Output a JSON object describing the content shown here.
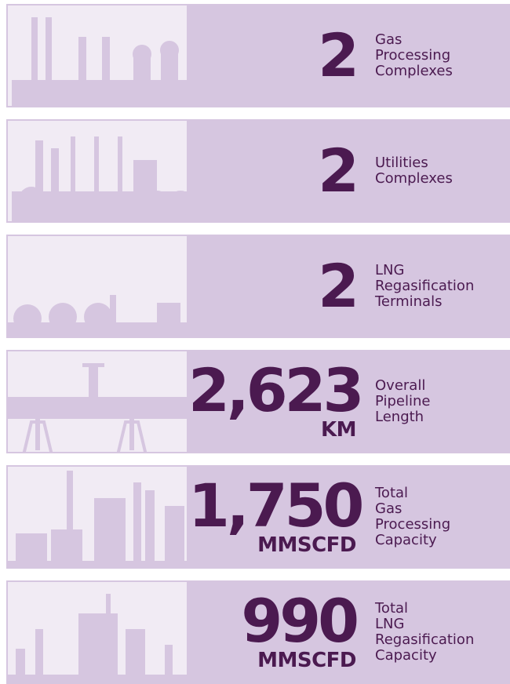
{
  "rows": [
    {
      "value": "2",
      "label": [
        "Gas",
        "Processing",
        "Complexes"
      ]
    },
    {
      "value": "2",
      "label": [
        "Utilities",
        "Complexes"
      ]
    },
    {
      "value": "2",
      "label": [
        "LNG",
        "Regasification",
        "Terminals"
      ]
    },
    {
      "value": "2,623",
      "unit": "KM",
      "label": [
        "Overall",
        "Pipeline",
        "Length"
      ]
    },
    {
      "value": "1,750",
      "unit": "MMSCFD",
      "label": [
        "Total",
        "Gas",
        "Processing",
        "Capacity"
      ]
    },
    {
      "value": "990",
      "unit": "MMSCFD",
      "label": [
        "Total",
        "LNG",
        "Regasification",
        "Capacity"
      ]
    }
  ]
}
